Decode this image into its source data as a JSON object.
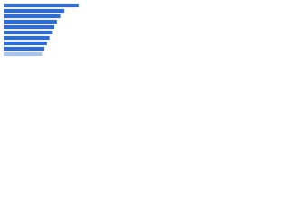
{
  "chart_data": {
    "type": "hbar",
    "categories": [
      null,
      null,
      null,
      null,
      null,
      null,
      null,
      null,
      null,
      null
    ],
    "values": [
      90,
      73,
      68,
      64,
      61,
      58,
      55,
      52,
      49,
      46
    ],
    "colors": [
      "#2f6ccf",
      "#2f6ccf",
      "#2f6ccf",
      "#2f6ccf",
      "#2f6ccf",
      "#2f6ccf",
      "#2f6ccf",
      "#2f6ccf",
      "#2f6ccf",
      "#a8c3ec"
    ],
    "xlim": [
      0,
      100
    ]
  }
}
